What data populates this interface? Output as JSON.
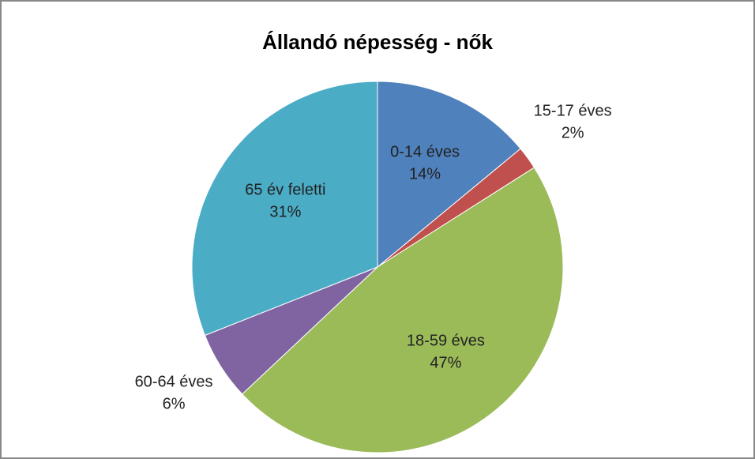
{
  "chart_data": {
    "type": "pie",
    "title": "Állandó népesség - nők",
    "categories": [
      "0-14 éves",
      "15-17 éves",
      "18-59 éves",
      "60-64 éves",
      "65 év feletti"
    ],
    "values": [
      14,
      2,
      47,
      6,
      31
    ],
    "value_labels": [
      "14%",
      "2%",
      "47%",
      "6%",
      "31%"
    ],
    "colors": [
      "#4f81bd",
      "#c0504d",
      "#9bbb59",
      "#8064a2",
      "#4bacc6"
    ]
  }
}
